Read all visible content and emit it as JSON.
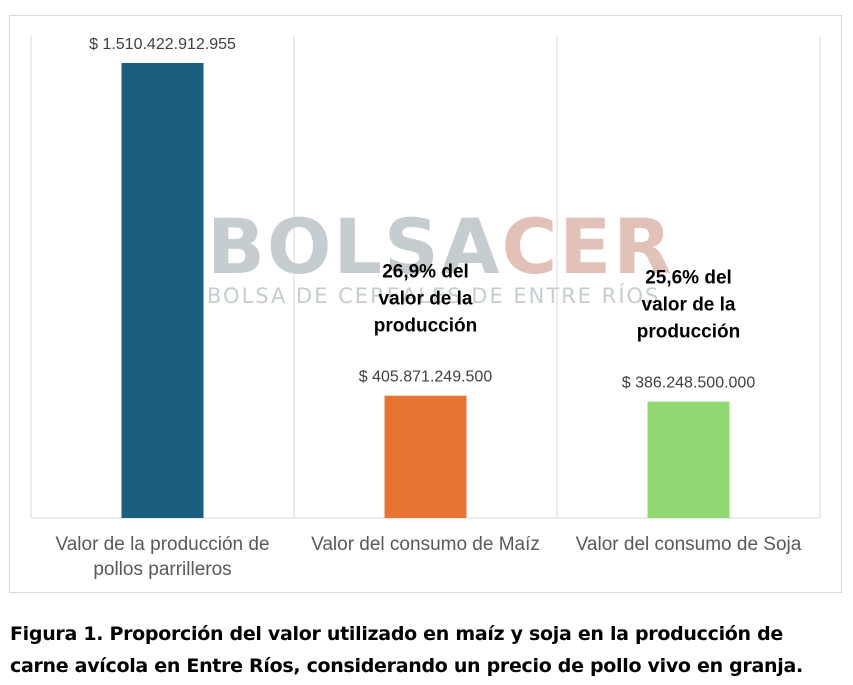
{
  "watermark": {
    "brand_part1": "BOLSA",
    "brand_part2": "CER",
    "subtitle": "BOLSA DE CEREALES DE ENTRE RÍOS",
    "color_part1": "#c5cdd0",
    "color_part2": "#e2c2b8"
  },
  "chart_data": {
    "type": "bar",
    "categories": [
      [
        "Valor de la producción de",
        "pollos parrilleros"
      ],
      [
        "Valor del consumo de Maíz"
      ],
      [
        "Valor del consumo de Soja"
      ]
    ],
    "values": [
      1510422912955,
      405871249500,
      386248500000
    ],
    "value_labels": [
      "$ 1.510.422.912.955",
      "$ 405.871.249.500",
      "$ 386.248.500.000"
    ],
    "colors": [
      "#1b5e80",
      "#e87434",
      "#8fd872"
    ],
    "annotations": [
      null,
      [
        "26,9% del",
        "valor de la",
        "producción"
      ],
      [
        "25,6% del",
        "valor de la",
        "producción"
      ]
    ],
    "ylim": [
      0,
      1600000000000
    ],
    "grid": "vertical separators",
    "title": "",
    "xlabel": "",
    "ylabel": ""
  },
  "caption": "Figura 1. Proporción del valor utilizado en maíz y soja en la producción de carne avícola en Entre Ríos, considerando un precio de pollo vivo en granja."
}
